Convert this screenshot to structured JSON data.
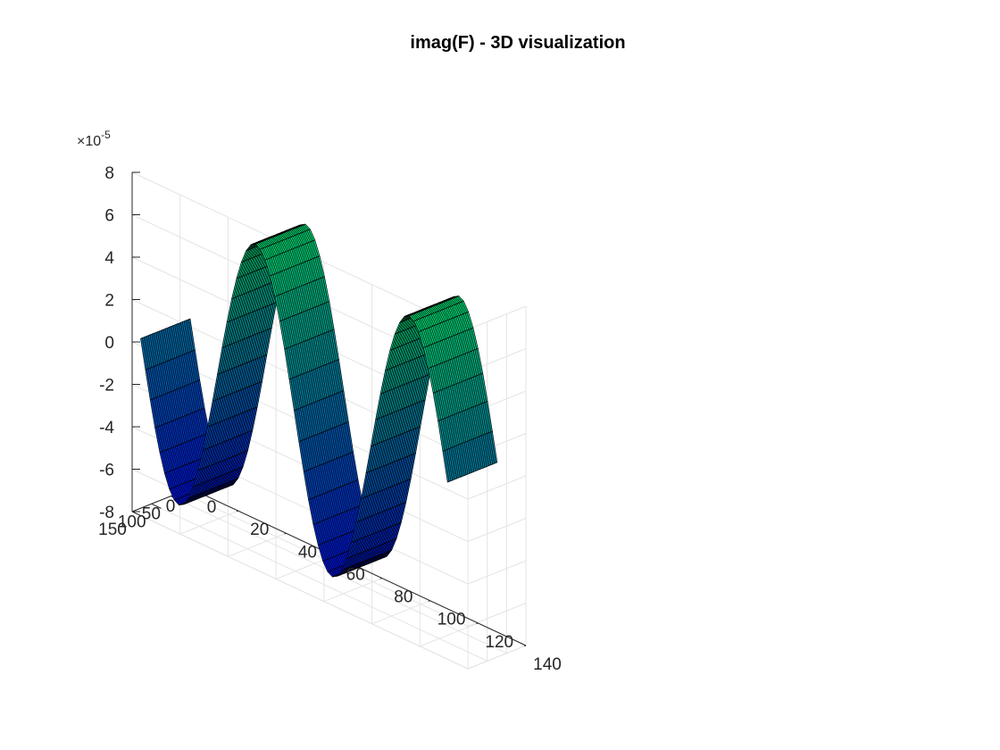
{
  "chart_data": {
    "type": "surface",
    "title": "imag(F) - 3D visualization",
    "xlabel": "",
    "ylabel": "",
    "zlabel": "",
    "xlim": [
      0,
      140
    ],
    "ylim": [
      0,
      150
    ],
    "zlim": [
      -8e-05,
      8e-05
    ],
    "x_ticks": [
      0,
      20,
      40,
      60,
      80,
      100,
      120,
      140
    ],
    "x_tick_labels": [
      "0",
      "20",
      "40",
      "60",
      "80",
      "100",
      "120",
      "140"
    ],
    "y_ticks": [
      0,
      50,
      100,
      150
    ],
    "y_tick_labels": [
      "0",
      "50",
      "100",
      "150"
    ],
    "z_ticks": [
      -8,
      -6,
      -4,
      -2,
      0,
      2,
      4,
      6,
      8
    ],
    "z_tick_labels": [
      "-8",
      "-6",
      "-4",
      "-2",
      "0",
      "2",
      "4",
      "6",
      "8"
    ],
    "z_exponent_base": "×10",
    "z_exponent": "-5",
    "grid": true,
    "colormap": "winter",
    "surface": {
      "x_range": [
        0,
        128
      ],
      "y_range": [
        0,
        128
      ],
      "x_samples": 65,
      "y_samples": 33,
      "amplitude": 7e-05,
      "period_x": 64,
      "formula": "z = -amplitude * sin(2*pi*x/period_x), constant along y"
    }
  }
}
